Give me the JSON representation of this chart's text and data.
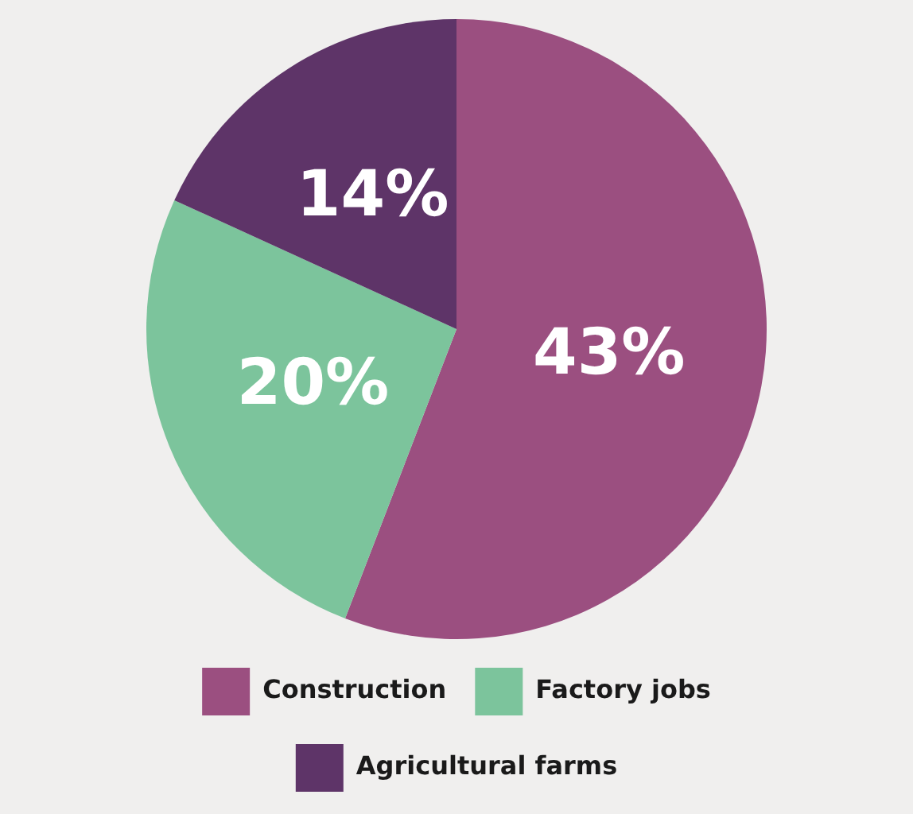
{
  "chart_data": {
    "type": "pie",
    "categories": [
      "Construction",
      "Factory jobs",
      "Agricultural farms"
    ],
    "values": [
      43,
      20,
      14
    ],
    "colors": [
      "#9b4f80",
      "#7cc49c",
      "#5e3468"
    ],
    "value_labels": [
      "43%",
      "20%",
      "14%"
    ],
    "legend": "bottom"
  }
}
